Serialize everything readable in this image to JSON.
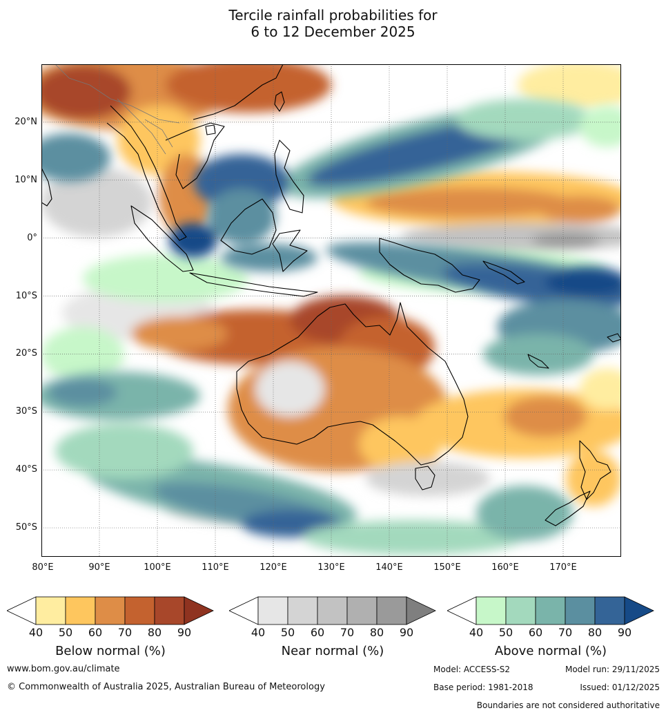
{
  "title_line1": "Tercile rainfall probabilities for",
  "title_line2": "6 to 12 December 2025",
  "lat_labels": [
    "20°N",
    "10°N",
    "0°",
    "10°S",
    "20°S",
    "30°S",
    "40°S",
    "50°S"
  ],
  "lon_labels": [
    "80°E",
    "90°E",
    "100°E",
    "110°E",
    "120°E",
    "130°E",
    "140°E",
    "150°E",
    "160°E",
    "170°E"
  ],
  "colorbars": [
    {
      "caption": "Below normal (%)",
      "ticks": [
        "40",
        "50",
        "60",
        "70",
        "80",
        "90"
      ],
      "colors": [
        "#ffffff",
        "#ffeda0",
        "#fec65e",
        "#de8d47",
        "#c4622f",
        "#a8472a",
        "#8f3320"
      ]
    },
    {
      "caption": "Near normal (%)",
      "ticks": [
        "40",
        "50",
        "60",
        "70",
        "80",
        "90"
      ],
      "colors": [
        "#ffffff",
        "#e6e6e6",
        "#d4d4d4",
        "#c2c2c2",
        "#b0b0b0",
        "#9a9a9a",
        "#7f7f7f"
      ]
    },
    {
      "caption": "Above normal (%)",
      "ticks": [
        "40",
        "50",
        "60",
        "70",
        "80",
        "90"
      ],
      "colors": [
        "#ffffff",
        "#c7f7c9",
        "#a3d9bd",
        "#7ab4aa",
        "#5b8fa0",
        "#346497",
        "#164a87"
      ]
    }
  ],
  "footer": {
    "url": "www.bom.gov.au/climate",
    "copyright": "© Commonwealth of Australia 2025, Australian Bureau of Meteorology",
    "model": "Model: ACCESS-S2",
    "model_run": "Model run: 29/11/2025",
    "base_period": "Base period: 1981-2018",
    "issued": "Issued: 01/12/2025",
    "disclaimer": "Boundaries are not considered authoritative"
  },
  "map_extent": {
    "lon_min": 80,
    "lon_max": 180,
    "lat_min": -55,
    "lat_max": 30
  },
  "regions": [
    {
      "name": "below-south-china",
      "tercile": "below",
      "level": 4,
      "lon": [
        85,
        115
      ],
      "lat": [
        20,
        30
      ]
    },
    {
      "name": "below-pacific-north",
      "tercile": "below",
      "level": 3,
      "lon": [
        130,
        175
      ],
      "lat": [
        5,
        10
      ]
    },
    {
      "name": "below-north-australia",
      "tercile": "below",
      "level": 4,
      "lon": [
        100,
        145
      ],
      "lat": [
        -22,
        -13
      ]
    },
    {
      "name": "below-australia-interior",
      "tercile": "below",
      "level": 3,
      "lon": [
        120,
        152
      ],
      "lat": [
        -38,
        -22
      ]
    },
    {
      "name": "near-equatorial-pacific",
      "tercile": "near",
      "level": 2,
      "lon": [
        150,
        180
      ],
      "lat": [
        -1,
        3
      ]
    },
    {
      "name": "above-nw-pacific-band",
      "tercile": "above",
      "level": 4,
      "lon": [
        125,
        170
      ],
      "lat": [
        10,
        20
      ]
    },
    {
      "name": "above-maritime-continent",
      "tercile": "above",
      "level": 4,
      "lon": [
        105,
        125
      ],
      "lat": [
        -3,
        12
      ]
    },
    {
      "name": "above-png-band",
      "tercile": "above",
      "level": 5,
      "lon": [
        140,
        180
      ],
      "lat": [
        -12,
        -2
      ]
    },
    {
      "name": "above-southern-ocean",
      "tercile": "above",
      "level": 3,
      "lon": [
        85,
        145
      ],
      "lat": [
        -55,
        -38
      ]
    }
  ]
}
